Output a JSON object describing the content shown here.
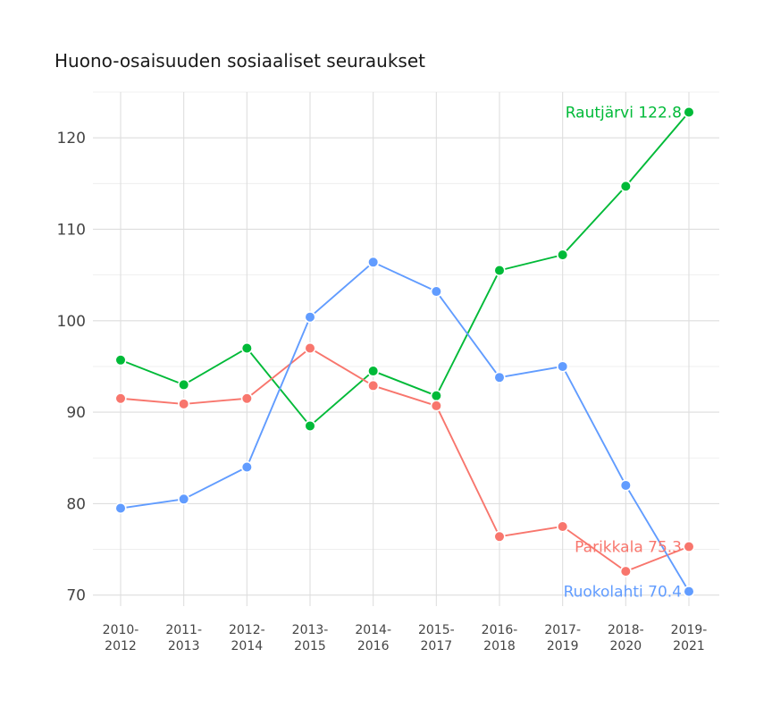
{
  "chart_data": {
    "type": "line",
    "title": "Huono-osaisuuden sosiaaliset seuraukset",
    "xlabel": "",
    "ylabel": "",
    "categories": [
      [
        "2010-",
        "2012"
      ],
      [
        "2011-",
        "2013"
      ],
      [
        "2012-",
        "2014"
      ],
      [
        "2013-",
        "2015"
      ],
      [
        "2014-",
        "2016"
      ],
      [
        "2015-",
        "2017"
      ],
      [
        "2016-",
        "2018"
      ],
      [
        "2017-",
        "2019"
      ],
      [
        "2018-",
        "2020"
      ],
      [
        "2019-",
        "2021"
      ]
    ],
    "ylim": [
      68.8,
      125
    ],
    "yticks": [
      70,
      80,
      90,
      100,
      110,
      120
    ],
    "grid": true,
    "legend": "none",
    "series": [
      {
        "name": "Rautjärvi",
        "color": "#00ba38",
        "values": [
          95.7,
          93.0,
          97.0,
          88.5,
          94.5,
          91.8,
          105.5,
          107.2,
          114.7,
          122.8
        ],
        "end_label": "Rautjärvi 122.8"
      },
      {
        "name": "Parikkala",
        "color": "#f8766d",
        "values": [
          91.5,
          90.9,
          91.5,
          97.0,
          92.9,
          90.7,
          76.4,
          77.5,
          72.6,
          75.3
        ],
        "end_label": "Parikkala 75.3"
      },
      {
        "name": "Ruokolahti",
        "color": "#619cff",
        "values": [
          79.5,
          80.5,
          84.0,
          100.4,
          106.4,
          103.2,
          93.8,
          95.0,
          82.0,
          70.4
        ],
        "end_label": "Ruokolahti 70.4"
      }
    ]
  }
}
